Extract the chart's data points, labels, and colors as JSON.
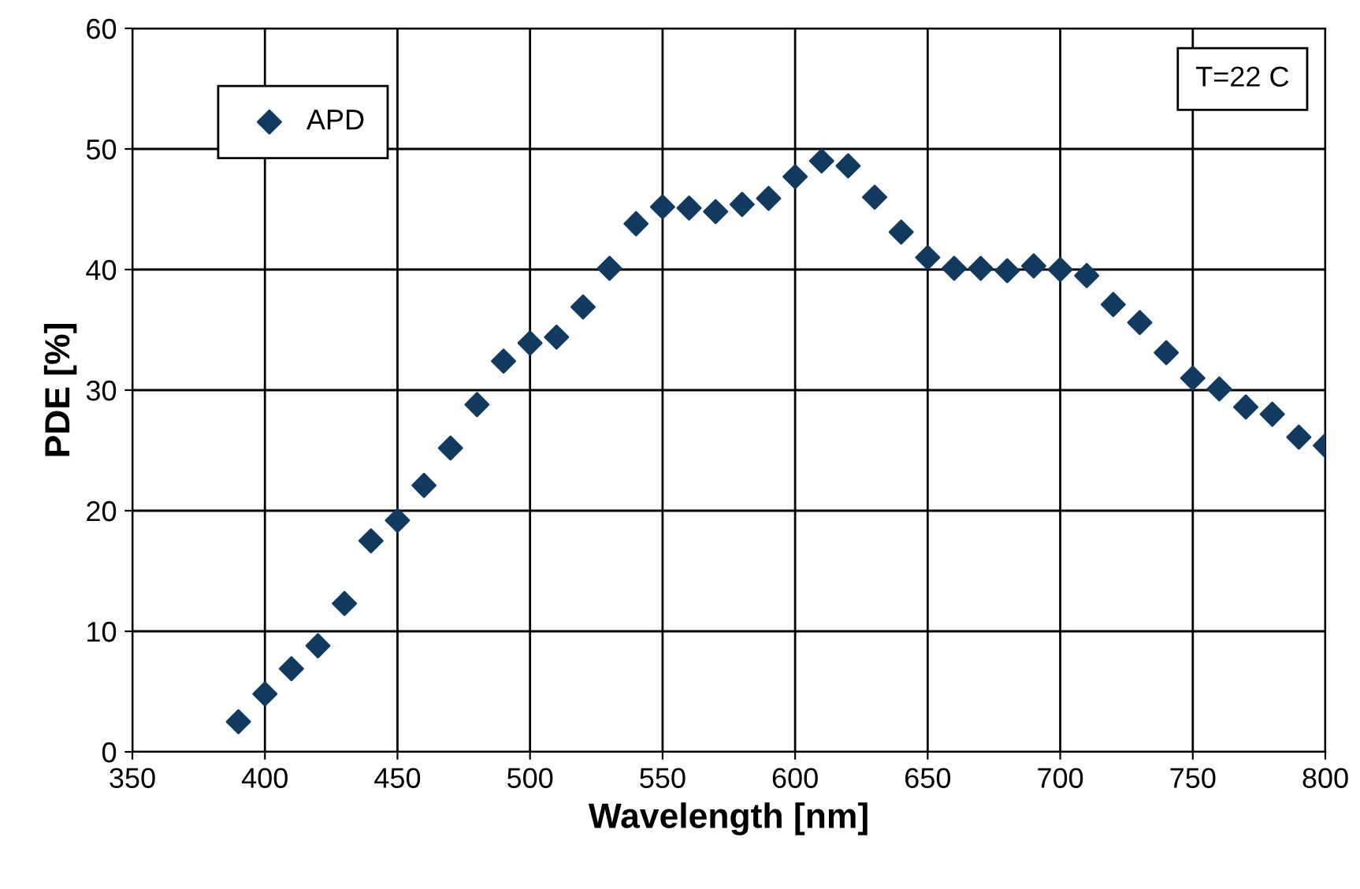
{
  "chart_data": {
    "type": "scatter",
    "xlabel": "Wavelength [nm]",
    "ylabel": "PDE [%]",
    "x": [
      390,
      400,
      410,
      420,
      430,
      440,
      450,
      460,
      470,
      480,
      490,
      500,
      510,
      520,
      530,
      540,
      550,
      560,
      570,
      580,
      590,
      600,
      610,
      620,
      630,
      640,
      650,
      660,
      670,
      680,
      690,
      700,
      710,
      720,
      730,
      740,
      750,
      760,
      770,
      780,
      790,
      800
    ],
    "series": [
      {
        "name": "APD",
        "color": "#123a5e",
        "values": [
          2.5,
          4.8,
          6.9,
          8.8,
          12.3,
          17.5,
          19.2,
          22.1,
          25.2,
          28.8,
          32.4,
          33.9,
          34.4,
          36.9,
          40.1,
          43.8,
          45.2,
          45.1,
          44.8,
          45.4,
          45.9,
          47.7,
          49.0,
          48.6,
          46.0,
          43.1,
          41.0,
          40.1,
          40.1,
          39.9,
          40.3,
          40.0,
          39.5,
          37.1,
          35.6,
          33.1,
          31.0,
          30.1,
          28.6,
          28.0,
          26.1,
          25.4
        ]
      }
    ],
    "xlim": [
      350,
      800
    ],
    "xticks": [
      350,
      400,
      450,
      500,
      550,
      600,
      650,
      700,
      750,
      800
    ],
    "ylim": [
      0,
      60
    ],
    "yticks": [
      0,
      10,
      20,
      30,
      40,
      50,
      60
    ],
    "annotations": [
      "T=22 C"
    ],
    "grid": true,
    "legend": "top left",
    "marker": "diamond"
  }
}
